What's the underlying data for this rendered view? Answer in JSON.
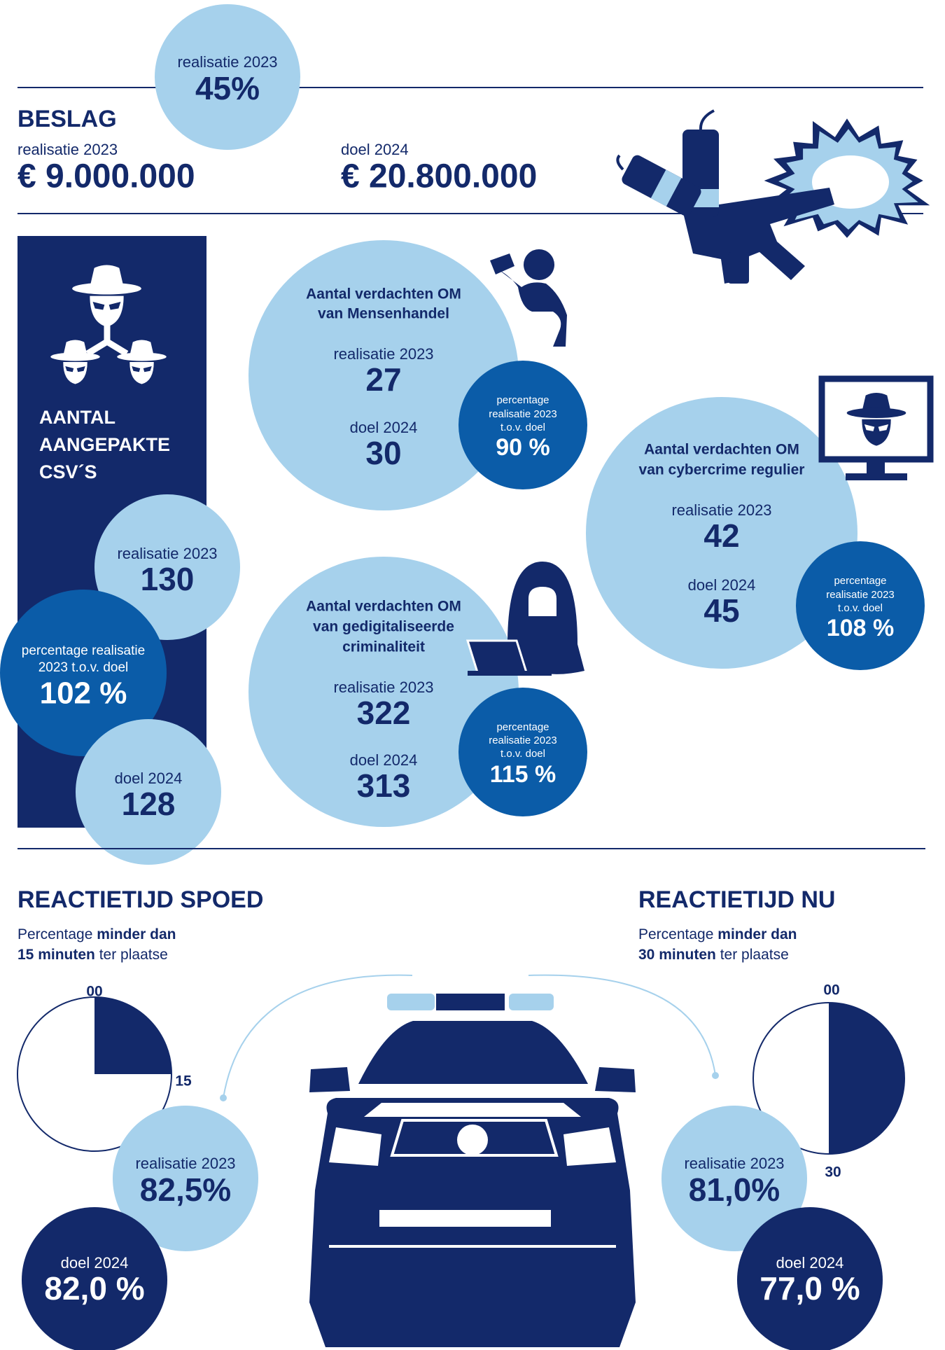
{
  "beslag": {
    "badge_label": "realisatie 2023",
    "badge_value": "45%",
    "title": "BESLAG",
    "realisatie_label": "realisatie 2023",
    "realisatie_value": "€ 9.000.000",
    "doel_label": "doel 2024",
    "doel_value": "€ 20.800.000"
  },
  "csv": {
    "title_lines": [
      "AANTAL",
      "AANGEPAKTE",
      "CSV´S"
    ],
    "realisatie_label": "realisatie 2023",
    "realisatie_value": "130",
    "percentage_lines": [
      "percentage realisatie",
      "2023 t.o.v. doel"
    ],
    "percentage_value": "102 %",
    "doel_label": "doel 2024",
    "doel_value": "128"
  },
  "suspects": [
    {
      "title_lines": [
        "Aantal verdachten OM",
        "van Mensenhandel"
      ],
      "realisatie_label": "realisatie 2023",
      "realisatie_value": "27",
      "doel_label": "doel 2024",
      "doel_value": "30",
      "percentage_lines": [
        "percentage",
        "realisatie 2023",
        "t.o.v. doel"
      ],
      "percentage_value": "90 %"
    },
    {
      "title_lines": [
        "Aantal verdachten OM",
        "van cybercrime regulier"
      ],
      "realisatie_label": "realisatie 2023",
      "realisatie_value": "42",
      "doel_label": "doel 2024",
      "doel_value": "45",
      "percentage_lines": [
        "percentage",
        "realisatie 2023",
        "t.o.v. doel"
      ],
      "percentage_value": "108 %"
    },
    {
      "title_lines": [
        "Aantal verdachten OM",
        "van gedigitaliseerde",
        "criminaliteit"
      ],
      "realisatie_label": "realisatie 2023",
      "realisatie_value": "322",
      "doel_label": "doel 2024",
      "doel_value": "313",
      "percentage_lines": [
        "percentage",
        "realisatie 2023",
        "t.o.v. doel"
      ],
      "percentage_value": "115 %"
    }
  ],
  "reaction": [
    {
      "title": "REACTIETIJD SPOED",
      "subtitle": {
        "line1_regular": "Percentage",
        "line1_bold": "minder dan",
        "line2_bold": "15 minuten",
        "line2_regular": "ter plaatse"
      },
      "clock_labels": [
        "00",
        "15"
      ],
      "realisatie_label": "realisatie 2023",
      "realisatie_value": "82,5%",
      "doel_label": "doel 2024",
      "doel_value": "82,0 %"
    },
    {
      "title": "REACTIETIJD NU",
      "subtitle": {
        "line1_regular": "Percentage",
        "line1_bold": "minder dan",
        "line2_bold": "30 minuten",
        "line2_regular": "ter plaatse"
      },
      "clock_labels": [
        "00",
        "30"
      ],
      "realisatie_label": "realisatie 2023",
      "realisatie_value": "81,0%",
      "doel_label": "doel 2024",
      "doel_value": "77,0 %"
    }
  ]
}
